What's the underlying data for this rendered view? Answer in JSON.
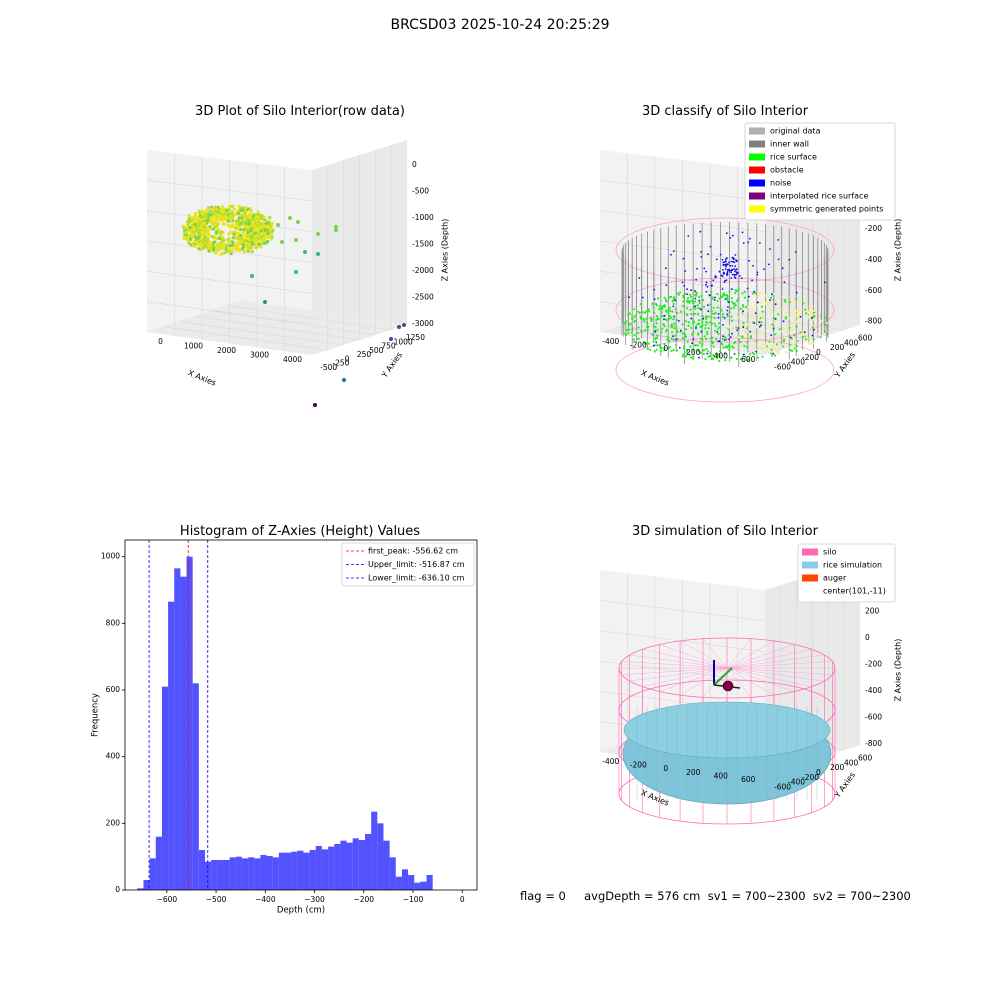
{
  "suptitle": "BRCSD03 2025-10-24 20:25:29",
  "panels": {
    "raw": {
      "title": "3D Plot of Silo Interior(row data)",
      "xlabel": "X Axies",
      "ylabel": "Y Axies",
      "zlabel": "Z Axies (Depth)",
      "xticks": [
        "0",
        "1000",
        "2000",
        "3000",
        "4000"
      ],
      "yticks": [
        "-500",
        "-250",
        "0",
        "250",
        "500",
        "750",
        "1000",
        "1250"
      ],
      "zticks": [
        "0",
        "-500",
        "-1000",
        "-1500",
        "-2000",
        "-2500",
        "-3000"
      ]
    },
    "classify": {
      "title": "3D classify of Silo Interior",
      "xlabel": "X Axies",
      "ylabel": "Y Axies",
      "zlabel": "Z Axies (Depth)",
      "xticks": [
        "-400",
        "-200",
        "0",
        "200",
        "400",
        "600"
      ],
      "yticks": [
        "-600",
        "-400",
        "-200",
        "0",
        "200",
        "400",
        "600"
      ],
      "zticks": [
        "200",
        "0",
        "-200",
        "-400",
        "-600",
        "-800"
      ],
      "legend": [
        {
          "label": "original data",
          "color": "#b0b0b0"
        },
        {
          "label": "inner wall",
          "color": "#808080"
        },
        {
          "label": "rice surface",
          "color": "#00ff00"
        },
        {
          "label": "obstacle",
          "color": "#ff0000"
        },
        {
          "label": "noise",
          "color": "#0000ff"
        },
        {
          "label": "interpolated rice surface",
          "color": "#800080"
        },
        {
          "label": "symmetric generated points",
          "color": "#ffff00"
        }
      ]
    },
    "simulation": {
      "title": "3D simulation of Silo Interior",
      "xlabel": "X Axies",
      "ylabel": "Y Axies",
      "zlabel": "Z Axies (Depth)",
      "xticks": [
        "-400",
        "-200",
        "0",
        "200",
        "400",
        "600"
      ],
      "yticks": [
        "-600",
        "-400",
        "-200",
        "0",
        "200",
        "400",
        "600"
      ],
      "zticks": [
        "400",
        "200",
        "0",
        "-200",
        "-400",
        "-600",
        "-800"
      ],
      "legend": [
        {
          "label": "silo",
          "color": "#ff69b4"
        },
        {
          "label": "rice simulation",
          "color": "#87ceeb"
        },
        {
          "label": "auger",
          "color": "#ff4500"
        },
        {
          "label": "center(101,-11)",
          "color": ""
        }
      ]
    }
  },
  "flag_line": "flag = 0     avgDepth = 576 cm  sv1 = 700~2300  sv2 = 700~2300",
  "chart_data": {
    "type": "bar",
    "title": "Histogram of Z-Axies (Height) Values",
    "xlabel": "Depth (cm)",
    "ylabel": "Frequency",
    "xlim": [
      -685,
      30
    ],
    "ylim": [
      0,
      1050
    ],
    "bar_color": "#0000ff",
    "bin_start": -660,
    "bin_width": 12.5,
    "values": [
      5,
      30,
      95,
      160,
      610,
      865,
      965,
      940,
      1000,
      620,
      120,
      85,
      90,
      90,
      90,
      98,
      100,
      95,
      98,
      95,
      105,
      102,
      98,
      112,
      112,
      115,
      118,
      112,
      120,
      132,
      122,
      130,
      138,
      148,
      142,
      155,
      150,
      168,
      235,
      200,
      148,
      98,
      40,
      62,
      45,
      22,
      25,
      45
    ],
    "xticks": [
      -600,
      -500,
      -400,
      -300,
      -200,
      -100,
      0
    ],
    "yticks": [
      0,
      200,
      400,
      600,
      800,
      1000
    ],
    "vlines": [
      {
        "x": -556.62,
        "color": "#ff0000",
        "label": "first_peak: -556.62 cm"
      },
      {
        "x": -516.87,
        "color": "#0000ff",
        "label": "Upper_limit: -516.87 cm"
      },
      {
        "x": -636.1,
        "color": "#0000ff",
        "label": "Lower_limit: -636.10 cm"
      }
    ]
  }
}
